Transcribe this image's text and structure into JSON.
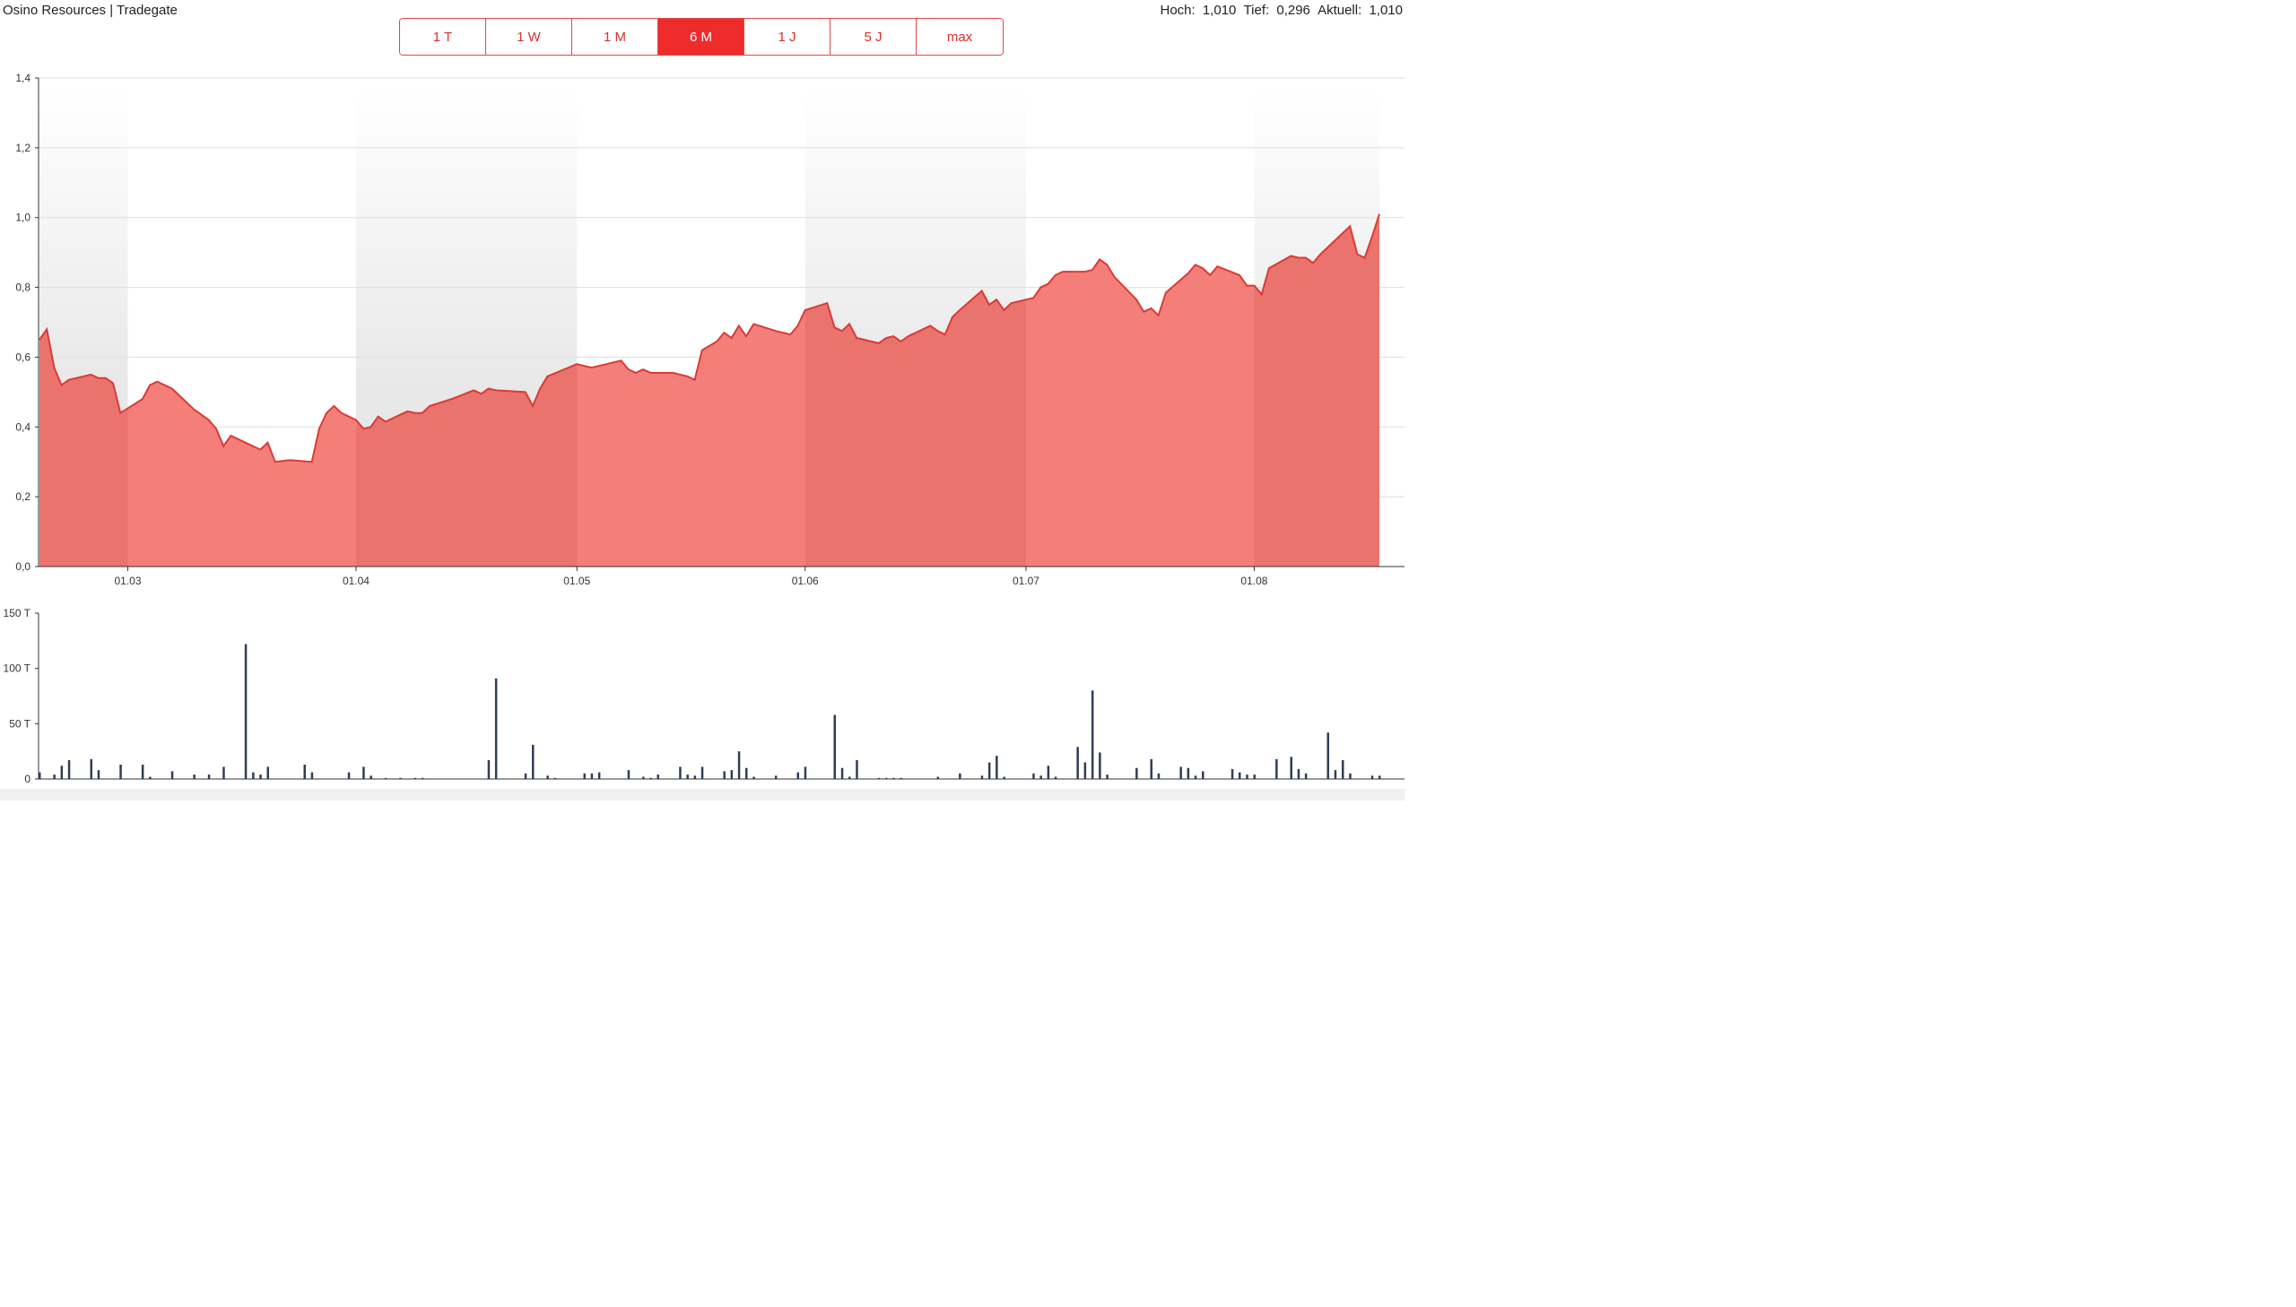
{
  "header": {
    "title": "Osino Resources | Tradegate",
    "stats": [
      {
        "label": "Hoch:",
        "value": "1,010"
      },
      {
        "label": "Tief:",
        "value": "0,296"
      },
      {
        "label": "Aktuell:",
        "value": "1,010"
      }
    ]
  },
  "range_buttons": [
    {
      "label": "1 T",
      "active": false
    },
    {
      "label": "1 W",
      "active": false
    },
    {
      "label": "1 M",
      "active": false
    },
    {
      "label": "6 M",
      "active": true
    },
    {
      "label": "1 J",
      "active": false
    },
    {
      "label": "5 J",
      "active": false
    },
    {
      "label": "max",
      "active": false
    }
  ],
  "colors": {
    "accent": "#ef2b2b",
    "area_fill": "#f47f7a",
    "line": "#dc3a35",
    "volume_bar": "#2f3e55"
  },
  "chart_data": [
    {
      "type": "area",
      "x_tick_labels": [
        "01.03",
        "01.04",
        "01.05",
        "01.06",
        "01.07",
        "01.08"
      ],
      "y_tick_labels": [
        "0,0",
        "0,2",
        "0,4",
        "0,6",
        "0,8",
        "1,0",
        "1,2",
        "1,4"
      ],
      "ylim": [
        0,
        1.4
      ],
      "xlim": [
        "2023-02-17",
        "2023-08-17"
      ],
      "grid": true,
      "series": [
        {
          "points": [
            [
              "2023-02-17",
              0.65
            ],
            [
              "2023-02-18",
              0.68
            ],
            [
              "2023-02-19",
              0.57
            ],
            [
              "2023-02-20",
              0.52
            ],
            [
              "2023-02-21",
              0.535
            ],
            [
              "2023-02-24",
              0.55
            ],
            [
              "2023-02-25",
              0.54
            ],
            [
              "2023-02-26",
              0.54
            ],
            [
              "2023-02-27",
              0.525
            ],
            [
              "2023-02-28",
              0.44
            ],
            [
              "2023-03-03",
              0.48
            ],
            [
              "2023-03-04",
              0.52
            ],
            [
              "2023-03-05",
              0.53
            ],
            [
              "2023-03-07",
              0.51
            ],
            [
              "2023-03-10",
              0.45
            ],
            [
              "2023-03-12",
              0.42
            ],
            [
              "2023-03-13",
              0.395
            ],
            [
              "2023-03-14",
              0.345
            ],
            [
              "2023-03-15",
              0.375
            ],
            [
              "2023-03-17",
              0.355
            ],
            [
              "2023-03-19",
              0.335
            ],
            [
              "2023-03-20",
              0.355
            ],
            [
              "2023-03-21",
              0.3
            ],
            [
              "2023-03-23",
              0.305
            ],
            [
              "2023-03-26",
              0.3
            ],
            [
              "2023-03-27",
              0.395
            ],
            [
              "2023-03-28",
              0.44
            ],
            [
              "2023-03-29",
              0.46
            ],
            [
              "2023-03-30",
              0.44
            ],
            [
              "2023-04-01",
              0.42
            ],
            [
              "2023-04-02",
              0.395
            ],
            [
              "2023-04-03",
              0.4
            ],
            [
              "2023-04-04",
              0.43
            ],
            [
              "2023-04-05",
              0.415
            ],
            [
              "2023-04-07",
              0.435
            ],
            [
              "2023-04-08",
              0.445
            ],
            [
              "2023-04-09",
              0.44
            ],
            [
              "2023-04-10",
              0.44
            ],
            [
              "2023-04-11",
              0.46
            ],
            [
              "2023-04-14",
              0.48
            ],
            [
              "2023-04-17",
              0.505
            ],
            [
              "2023-04-18",
              0.495
            ],
            [
              "2023-04-19",
              0.51
            ],
            [
              "2023-04-20",
              0.505
            ],
            [
              "2023-04-24",
              0.5
            ],
            [
              "2023-04-25",
              0.46
            ],
            [
              "2023-04-26",
              0.51
            ],
            [
              "2023-04-27",
              0.545
            ],
            [
              "2023-05-01",
              0.58
            ],
            [
              "2023-05-02",
              0.575
            ],
            [
              "2023-05-03",
              0.57
            ],
            [
              "2023-05-05",
              0.58
            ],
            [
              "2023-05-07",
              0.59
            ],
            [
              "2023-05-08",
              0.565
            ],
            [
              "2023-05-09",
              0.555
            ],
            [
              "2023-05-10",
              0.565
            ],
            [
              "2023-05-11",
              0.555
            ],
            [
              "2023-05-14",
              0.555
            ],
            [
              "2023-05-16",
              0.545
            ],
            [
              "2023-05-17",
              0.535
            ],
            [
              "2023-05-18",
              0.62
            ],
            [
              "2023-05-20",
              0.645
            ],
            [
              "2023-05-21",
              0.67
            ],
            [
              "2023-05-22",
              0.655
            ],
            [
              "2023-05-23",
              0.69
            ],
            [
              "2023-05-24",
              0.66
            ],
            [
              "2023-05-25",
              0.695
            ],
            [
              "2023-05-28",
              0.675
            ],
            [
              "2023-05-30",
              0.665
            ],
            [
              "2023-05-31",
              0.69
            ],
            [
              "2023-06-01",
              0.735
            ],
            [
              "2023-06-04",
              0.755
            ],
            [
              "2023-06-05",
              0.685
            ],
            [
              "2023-06-06",
              0.675
            ],
            [
              "2023-06-07",
              0.695
            ],
            [
              "2023-06-08",
              0.655
            ],
            [
              "2023-06-11",
              0.64
            ],
            [
              "2023-06-12",
              0.655
            ],
            [
              "2023-06-13",
              0.66
            ],
            [
              "2023-06-14",
              0.645
            ],
            [
              "2023-06-15",
              0.66
            ],
            [
              "2023-06-18",
              0.69
            ],
            [
              "2023-06-19",
              0.675
            ],
            [
              "2023-06-20",
              0.665
            ],
            [
              "2023-06-21",
              0.715
            ],
            [
              "2023-06-22",
              0.735
            ],
            [
              "2023-06-25",
              0.79
            ],
            [
              "2023-06-26",
              0.75
            ],
            [
              "2023-06-27",
              0.765
            ],
            [
              "2023-06-28",
              0.735
            ],
            [
              "2023-06-29",
              0.755
            ],
            [
              "2023-07-02",
              0.77
            ],
            [
              "2023-07-03",
              0.8
            ],
            [
              "2023-07-04",
              0.81
            ],
            [
              "2023-07-05",
              0.835
            ],
            [
              "2023-07-06",
              0.845
            ],
            [
              "2023-07-09",
              0.845
            ],
            [
              "2023-07-10",
              0.85
            ],
            [
              "2023-07-11",
              0.88
            ],
            [
              "2023-07-12",
              0.865
            ],
            [
              "2023-07-13",
              0.83
            ],
            [
              "2023-07-16",
              0.765
            ],
            [
              "2023-07-17",
              0.73
            ],
            [
              "2023-07-18",
              0.74
            ],
            [
              "2023-07-19",
              0.72
            ],
            [
              "2023-07-20",
              0.785
            ],
            [
              "2023-07-23",
              0.84
            ],
            [
              "2023-07-24",
              0.865
            ],
            [
              "2023-07-25",
              0.855
            ],
            [
              "2023-07-26",
              0.835
            ],
            [
              "2023-07-27",
              0.86
            ],
            [
              "2023-07-30",
              0.835
            ],
            [
              "2023-07-31",
              0.805
            ],
            [
              "2023-08-01",
              0.805
            ],
            [
              "2023-08-02",
              0.78
            ],
            [
              "2023-08-03",
              0.855
            ],
            [
              "2023-08-06",
              0.89
            ],
            [
              "2023-08-07",
              0.885
            ],
            [
              "2023-08-08",
              0.885
            ],
            [
              "2023-08-09",
              0.87
            ],
            [
              "2023-08-10",
              0.895
            ],
            [
              "2023-08-14",
              0.975
            ],
            [
              "2023-08-15",
              0.895
            ],
            [
              "2023-08-16",
              0.885
            ],
            [
              "2023-08-17",
              0.945
            ],
            [
              "2023-08-18",
              1.01
            ]
          ]
        }
      ]
    },
    {
      "type": "bar",
      "y_tick_labels": [
        "0",
        "50 T",
        "100 T",
        "150 T"
      ],
      "ylim": [
        0,
        150000
      ],
      "series": [
        {
          "points": [
            [
              "2023-02-17",
              6000
            ],
            [
              "2023-02-19",
              4000
            ],
            [
              "2023-02-20",
              12000
            ],
            [
              "2023-02-21",
              17000
            ],
            [
              "2023-02-24",
              18000
            ],
            [
              "2023-02-25",
              8000
            ],
            [
              "2023-02-28",
              13000
            ],
            [
              "2023-03-03",
              13000
            ],
            [
              "2023-03-04",
              2000
            ],
            [
              "2023-03-07",
              7000
            ],
            [
              "2023-03-10",
              4000
            ],
            [
              "2023-03-12",
              4000
            ],
            [
              "2023-03-14",
              11000
            ],
            [
              "2023-03-17",
              122000
            ],
            [
              "2023-03-18",
              6000
            ],
            [
              "2023-03-19",
              4000
            ],
            [
              "2023-03-20",
              11000
            ],
            [
              "2023-03-25",
              13000
            ],
            [
              "2023-03-26",
              6000
            ],
            [
              "2023-03-31",
              6000
            ],
            [
              "2023-04-02",
              11000
            ],
            [
              "2023-04-03",
              3000
            ],
            [
              "2023-04-05",
              1000
            ],
            [
              "2023-04-07",
              1000
            ],
            [
              "2023-04-09",
              1000
            ],
            [
              "2023-04-10",
              1000
            ],
            [
              "2023-04-19",
              17000
            ],
            [
              "2023-04-20",
              91000
            ],
            [
              "2023-04-24",
              5000
            ],
            [
              "2023-04-25",
              31000
            ],
            [
              "2023-04-27",
              3000
            ],
            [
              "2023-04-28",
              1000
            ],
            [
              "2023-05-02",
              5000
            ],
            [
              "2023-05-03",
              5000
            ],
            [
              "2023-05-04",
              6000
            ],
            [
              "2023-05-08",
              8000
            ],
            [
              "2023-05-10",
              2000
            ],
            [
              "2023-05-11",
              1000
            ],
            [
              "2023-05-12",
              4000
            ],
            [
              "2023-05-15",
              11000
            ],
            [
              "2023-05-16",
              4000
            ],
            [
              "2023-05-17",
              3000
            ],
            [
              "2023-05-18",
              11000
            ],
            [
              "2023-05-21",
              7000
            ],
            [
              "2023-05-22",
              8000
            ],
            [
              "2023-05-23",
              25000
            ],
            [
              "2023-05-24",
              10000
            ],
            [
              "2023-05-25",
              2000
            ],
            [
              "2023-05-28",
              3000
            ],
            [
              "2023-05-31",
              6000
            ],
            [
              "2023-06-01",
              11000
            ],
            [
              "2023-06-05",
              58000
            ],
            [
              "2023-06-06",
              10000
            ],
            [
              "2023-06-07",
              2000
            ],
            [
              "2023-06-08",
              17000
            ],
            [
              "2023-06-11",
              1000
            ],
            [
              "2023-06-12",
              1000
            ],
            [
              "2023-06-13",
              1000
            ],
            [
              "2023-06-14",
              1000
            ],
            [
              "2023-06-19",
              2000
            ],
            [
              "2023-06-22",
              5000
            ],
            [
              "2023-06-25",
              3000
            ],
            [
              "2023-06-26",
              15000
            ],
            [
              "2023-06-27",
              21000
            ],
            [
              "2023-06-28",
              2000
            ],
            [
              "2023-07-02",
              5000
            ],
            [
              "2023-07-03",
              3000
            ],
            [
              "2023-07-04",
              12000
            ],
            [
              "2023-07-05",
              2000
            ],
            [
              "2023-07-08",
              29000
            ],
            [
              "2023-07-09",
              15000
            ],
            [
              "2023-07-10",
              80000
            ],
            [
              "2023-07-11",
              24000
            ],
            [
              "2023-07-12",
              4000
            ],
            [
              "2023-07-16",
              10000
            ],
            [
              "2023-07-18",
              18000
            ],
            [
              "2023-07-19",
              5000
            ],
            [
              "2023-07-22",
              11000
            ],
            [
              "2023-07-23",
              10000
            ],
            [
              "2023-07-24",
              3000
            ],
            [
              "2023-07-25",
              7000
            ],
            [
              "2023-07-29",
              9000
            ],
            [
              "2023-07-30",
              6000
            ],
            [
              "2023-07-31",
              4000
            ],
            [
              "2023-08-01",
              4000
            ],
            [
              "2023-08-04",
              18000
            ],
            [
              "2023-08-06",
              20000
            ],
            [
              "2023-08-07",
              9000
            ],
            [
              "2023-08-08",
              5000
            ],
            [
              "2023-08-11",
              42000
            ],
            [
              "2023-08-12",
              8000
            ],
            [
              "2023-08-13",
              17000
            ],
            [
              "2023-08-14",
              5000
            ],
            [
              "2023-08-17",
              3000
            ],
            [
              "2023-08-18",
              3000
            ]
          ]
        }
      ]
    }
  ]
}
